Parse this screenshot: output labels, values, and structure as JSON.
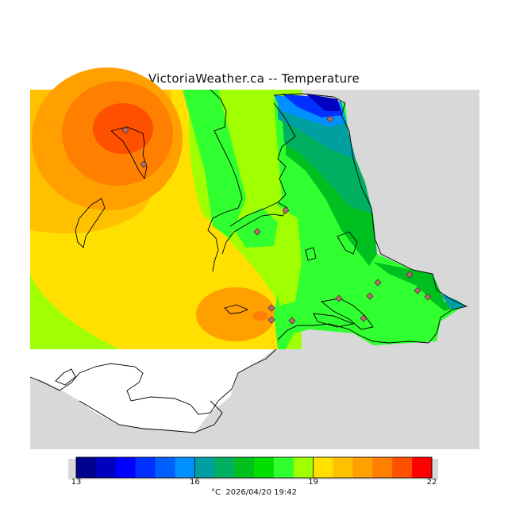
{
  "title": "VictoriaWeather.ca -- Temperature",
  "legend": {
    "min": 13,
    "max": 22,
    "tick_labels": [
      "13",
      "16",
      "19",
      "22"
    ],
    "bins": [
      {
        "from": 13.0,
        "to": 13.5,
        "color": "#00008f"
      },
      {
        "from": 13.5,
        "to": 14.0,
        "color": "#0000bf"
      },
      {
        "from": 14.0,
        "to": 14.5,
        "color": "#0000ff"
      },
      {
        "from": 14.5,
        "to": 15.0,
        "color": "#0030ff"
      },
      {
        "from": 15.0,
        "to": 15.5,
        "color": "#0060ff"
      },
      {
        "from": 15.5,
        "to": 16.0,
        "color": "#0090ff"
      },
      {
        "from": 16.0,
        "to": 16.5,
        "color": "#00a0a0"
      },
      {
        "from": 16.5,
        "to": 17.0,
        "color": "#00b060"
      },
      {
        "from": 17.0,
        "to": 17.5,
        "color": "#00c020"
      },
      {
        "from": 17.5,
        "to": 18.0,
        "color": "#00e000"
      },
      {
        "from": 18.0,
        "to": 18.5,
        "color": "#30ff30"
      },
      {
        "from": 18.5,
        "to": 19.0,
        "color": "#a0ff00"
      },
      {
        "from": 19.0,
        "to": 19.5,
        "color": "#ffe000"
      },
      {
        "from": 19.5,
        "to": 20.0,
        "color": "#ffc000"
      },
      {
        "from": 20.0,
        "to": 20.5,
        "color": "#ffa000"
      },
      {
        "from": 20.5,
        "to": 21.0,
        "color": "#ff8000"
      },
      {
        "from": 21.0,
        "to": 21.5,
        "color": "#ff5000"
      },
      {
        "from": 21.5,
        "to": 22.0,
        "color": "#ff0000"
      }
    ]
  },
  "footer": {
    "unit": "°C",
    "timestamp": "2026/04/20 19:42"
  },
  "colors": {
    "no_data": "#d8d8d8",
    "water_mask": "#ffffff",
    "coastline": "#000000",
    "station_marker_fill": "#b07070",
    "station_marker_stroke": "#503030"
  },
  "icons": {
    "station": "diamond-station-marker-icon"
  }
}
